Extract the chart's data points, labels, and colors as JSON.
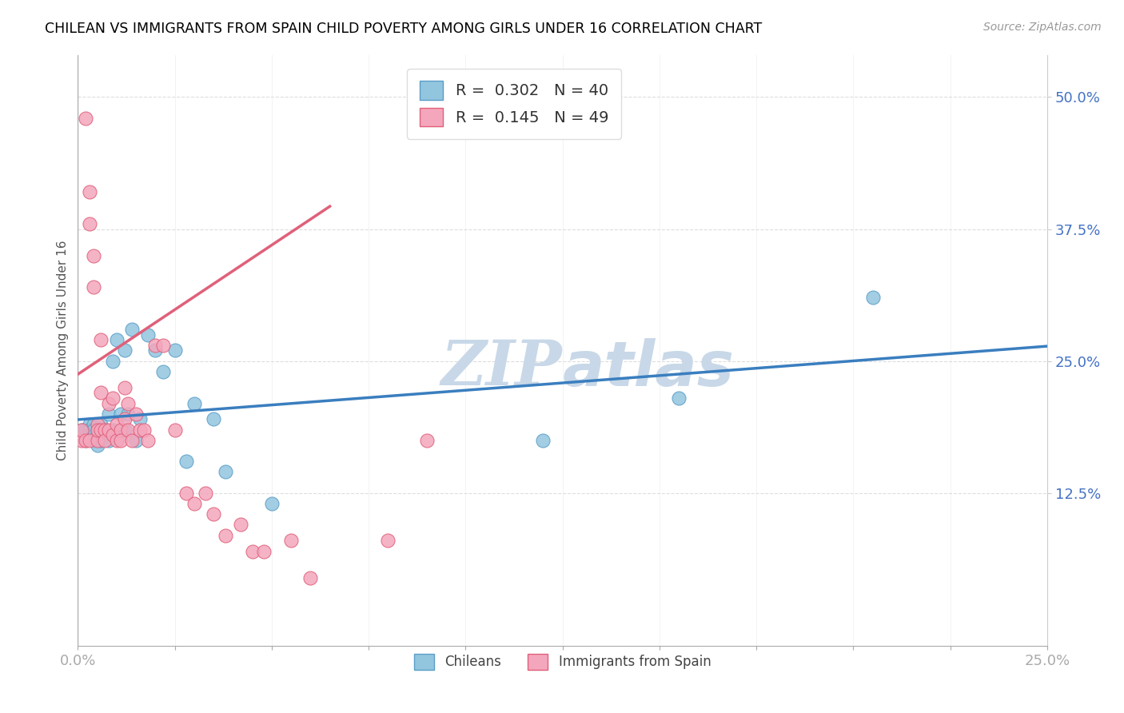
{
  "title": "CHILEAN VS IMMIGRANTS FROM SPAIN CHILD POVERTY AMONG GIRLS UNDER 16 CORRELATION CHART",
  "source": "Source: ZipAtlas.com",
  "ylabel": "Child Poverty Among Girls Under 16",
  "xmin": 0.0,
  "xmax": 0.25,
  "ymin": -0.02,
  "ymax": 0.54,
  "r1": 0.302,
  "n1": 40,
  "r2": 0.145,
  "n2": 49,
  "color_blue": "#92c5de",
  "color_blue_edge": "#5a9ec8",
  "color_blue_line": "#3a7ebf",
  "color_pink": "#f4a6bc",
  "color_pink_edge": "#e0607a",
  "color_pink_line": "#e0607a",
  "color_dash": "#c8d8e8",
  "watermark_color": "#c8d8e8",
  "chileans_x": [
    0.001,
    0.002,
    0.002,
    0.003,
    0.003,
    0.003,
    0.004,
    0.004,
    0.004,
    0.005,
    0.005,
    0.005,
    0.006,
    0.006,
    0.007,
    0.007,
    0.008,
    0.008,
    0.009,
    0.009,
    0.01,
    0.011,
    0.012,
    0.012,
    0.013,
    0.014,
    0.015,
    0.016,
    0.018,
    0.02,
    0.022,
    0.025,
    0.028,
    0.03,
    0.035,
    0.038,
    0.05,
    0.12,
    0.155,
    0.205
  ],
  "chileans_y": [
    0.185,
    0.185,
    0.175,
    0.19,
    0.185,
    0.18,
    0.19,
    0.185,
    0.175,
    0.185,
    0.18,
    0.17,
    0.19,
    0.175,
    0.185,
    0.18,
    0.2,
    0.175,
    0.25,
    0.185,
    0.27,
    0.2,
    0.185,
    0.26,
    0.2,
    0.28,
    0.175,
    0.195,
    0.275,
    0.26,
    0.24,
    0.26,
    0.155,
    0.21,
    0.195,
    0.145,
    0.115,
    0.175,
    0.215,
    0.31
  ],
  "spain_x": [
    0.001,
    0.001,
    0.002,
    0.002,
    0.003,
    0.003,
    0.003,
    0.004,
    0.004,
    0.005,
    0.005,
    0.005,
    0.006,
    0.006,
    0.006,
    0.007,
    0.007,
    0.008,
    0.008,
    0.009,
    0.009,
    0.01,
    0.01,
    0.011,
    0.011,
    0.012,
    0.012,
    0.013,
    0.013,
    0.014,
    0.015,
    0.016,
    0.017,
    0.018,
    0.02,
    0.022,
    0.025,
    0.028,
    0.03,
    0.033,
    0.035,
    0.038,
    0.042,
    0.045,
    0.048,
    0.055,
    0.06,
    0.08,
    0.09
  ],
  "spain_y": [
    0.175,
    0.185,
    0.48,
    0.175,
    0.41,
    0.38,
    0.175,
    0.35,
    0.32,
    0.19,
    0.175,
    0.185,
    0.185,
    0.27,
    0.22,
    0.185,
    0.175,
    0.21,
    0.185,
    0.18,
    0.215,
    0.19,
    0.175,
    0.185,
    0.175,
    0.225,
    0.195,
    0.185,
    0.21,
    0.175,
    0.2,
    0.185,
    0.185,
    0.175,
    0.265,
    0.265,
    0.185,
    0.125,
    0.115,
    0.125,
    0.105,
    0.085,
    0.095,
    0.07,
    0.07,
    0.08,
    0.045,
    0.08,
    0.175
  ]
}
